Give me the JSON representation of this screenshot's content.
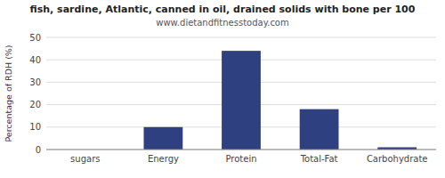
{
  "chart_data": {
    "type": "bar",
    "title": "fish, sardine, Atlantic, canned in oil, drained solids with bone per 100",
    "subtitle": "www.dietandfitnesstoday.com",
    "ylabel": "Percentage of RDH (%)",
    "categories": [
      "sugars",
      "Energy",
      "Protein",
      "Total-Fat",
      "Carbohydrate"
    ],
    "values": [
      0,
      10,
      44,
      18,
      1
    ],
    "color": "#2e4080",
    "ylim": [
      0,
      50
    ],
    "yticks": [
      0,
      10,
      20,
      30,
      40,
      50
    ],
    "grid": true
  }
}
